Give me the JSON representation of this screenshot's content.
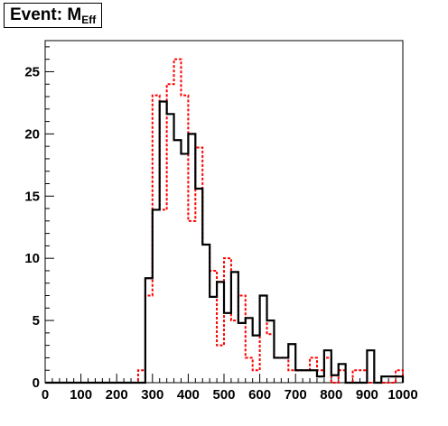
{
  "chart_data": {
    "type": "step",
    "title": "Event: M",
    "title_subscript": "Eff",
    "xlabel": "",
    "ylabel": "",
    "xlim": [
      0,
      1000
    ],
    "ylim": [
      0,
      27.5
    ],
    "grid": false,
    "legend": "none",
    "bin_width": 20,
    "x_ticks": [
      0,
      100,
      200,
      300,
      400,
      500,
      600,
      700,
      800,
      900,
      1000
    ],
    "y_ticks": [
      0,
      5,
      10,
      15,
      20,
      25
    ],
    "bin_starts": [
      0,
      20,
      40,
      60,
      80,
      100,
      120,
      140,
      160,
      180,
      200,
      220,
      240,
      260,
      280,
      300,
      320,
      340,
      360,
      380,
      400,
      420,
      440,
      460,
      480,
      500,
      520,
      540,
      560,
      580,
      600,
      620,
      640,
      660,
      680,
      700,
      720,
      740,
      760,
      780,
      800,
      820,
      840,
      860,
      880,
      900,
      920,
      940,
      960,
      980
    ],
    "series": [
      {
        "color": "#000000",
        "style": "solid",
        "values": [
          0,
          0,
          0,
          0,
          0,
          0,
          0,
          0,
          0,
          0,
          0,
          0,
          0,
          0,
          8.4,
          13.9,
          22.6,
          21.6,
          19.5,
          18.4,
          20.0,
          15.6,
          11.1,
          6.9,
          8.1,
          5.6,
          8.9,
          4.8,
          5.2,
          3.8,
          7.0,
          5.0,
          2.0,
          2.0,
          3.1,
          1.0,
          1.0,
          1.0,
          0.5,
          2.6,
          0.6,
          1.5,
          0,
          0,
          0,
          2.6,
          0,
          0.5,
          0.5,
          0.5
        ]
      },
      {
        "color": "#ff0000",
        "style": "dotted",
        "values": [
          0,
          0,
          0,
          0,
          0,
          0,
          0,
          0,
          0,
          0,
          0,
          0,
          0,
          1.0,
          7.0,
          23.1,
          13.9,
          24.0,
          26.0,
          23.1,
          13.0,
          18.9,
          11.1,
          9.0,
          3.0,
          10.0,
          5.0,
          7.0,
          2.0,
          1.0,
          7.0,
          3.9,
          2.0,
          2.0,
          1.0,
          1.0,
          1.0,
          2.0,
          1.0,
          2.0,
          0,
          1.0,
          0,
          1.0,
          1.0,
          0,
          0,
          0,
          0,
          1.0
        ]
      }
    ]
  }
}
